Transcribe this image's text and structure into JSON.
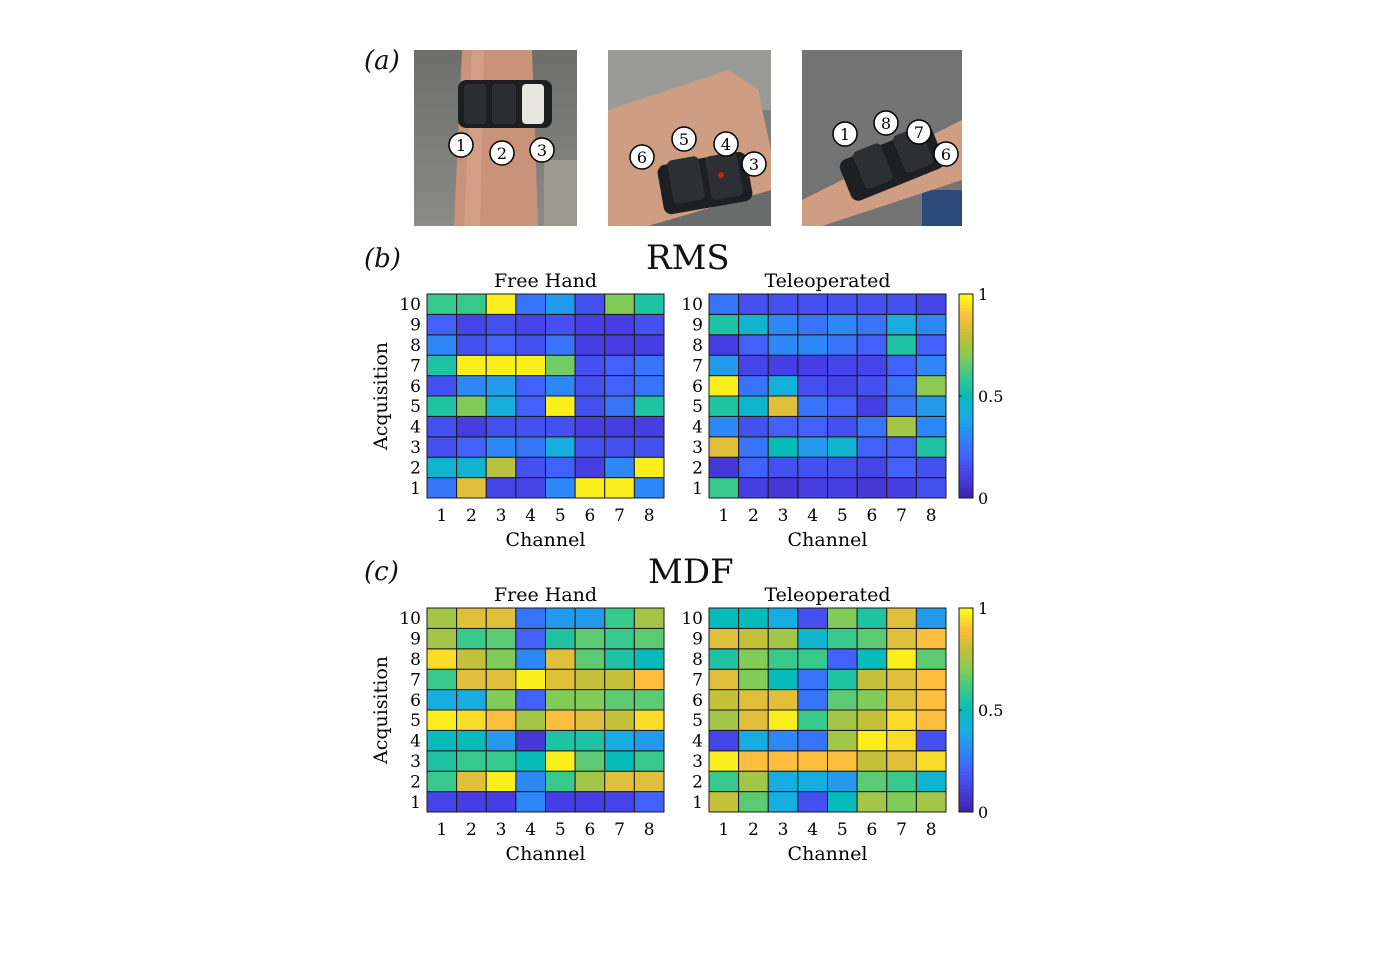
{
  "panels": {
    "a": "(a)",
    "b": "(b)",
    "c": "(c)"
  },
  "photos": [
    {
      "name": "photo-front-view",
      "markers": [
        "1",
        "2",
        "3"
      ]
    },
    {
      "name": "photo-side-view",
      "markers": [
        "6",
        "5",
        "4",
        "3"
      ]
    },
    {
      "name": "photo-back-view",
      "markers": [
        "1",
        "8",
        "7",
        "6"
      ]
    }
  ],
  "colorbar_ticks": [
    "0",
    "0.5",
    "1"
  ],
  "chart_data": [
    {
      "type": "heatmap",
      "group": "RMS",
      "title": "Free Hand",
      "xlabel": "Channel",
      "ylabel": "Acquisition",
      "x": [
        "1",
        "2",
        "3",
        "4",
        "5",
        "6",
        "7",
        "8"
      ],
      "y": [
        "1",
        "2",
        "3",
        "4",
        "5",
        "6",
        "7",
        "8",
        "9",
        "10"
      ],
      "clim": [
        0,
        1
      ],
      "values": [
        [
          0.25,
          0.85,
          0.12,
          0.12,
          0.3,
          0.98,
          0.98,
          0.3
        ],
        [
          0.45,
          0.45,
          0.78,
          0.15,
          0.2,
          0.1,
          0.3,
          0.98
        ],
        [
          0.15,
          0.2,
          0.3,
          0.25,
          0.4,
          0.15,
          0.15,
          0.15
        ],
        [
          0.15,
          0.1,
          0.15,
          0.15,
          0.15,
          0.1,
          0.1,
          0.1
        ],
        [
          0.55,
          0.7,
          0.42,
          0.2,
          0.98,
          0.15,
          0.25,
          0.55
        ],
        [
          0.15,
          0.3,
          0.35,
          0.2,
          0.3,
          0.15,
          0.2,
          0.25
        ],
        [
          0.55,
          0.98,
          0.98,
          0.98,
          0.68,
          0.15,
          0.2,
          0.25
        ],
        [
          0.3,
          0.15,
          0.2,
          0.15,
          0.25,
          0.1,
          0.1,
          0.1
        ],
        [
          0.2,
          0.12,
          0.15,
          0.12,
          0.15,
          0.1,
          0.1,
          0.15
        ],
        [
          0.6,
          0.6,
          0.98,
          0.25,
          0.35,
          0.15,
          0.7,
          0.55
        ]
      ]
    },
    {
      "type": "heatmap",
      "group": "RMS",
      "title": "Teleoperated",
      "xlabel": "Channel",
      "ylabel": "",
      "x": [
        "1",
        "2",
        "3",
        "4",
        "5",
        "6",
        "7",
        "8"
      ],
      "y": [
        "1",
        "2",
        "3",
        "4",
        "5",
        "6",
        "7",
        "8",
        "9",
        "10"
      ],
      "clim": [
        0,
        1
      ],
      "values": [
        [
          0.6,
          0.1,
          0.08,
          0.1,
          0.1,
          0.08,
          0.1,
          0.15
        ],
        [
          0.08,
          0.2,
          0.15,
          0.15,
          0.15,
          0.12,
          0.2,
          0.15
        ],
        [
          0.85,
          0.25,
          0.5,
          0.35,
          0.45,
          0.2,
          0.2,
          0.55
        ],
        [
          0.3,
          0.15,
          0.2,
          0.2,
          0.15,
          0.25,
          0.75,
          0.3
        ],
        [
          0.55,
          0.45,
          0.85,
          0.25,
          0.2,
          0.1,
          0.25,
          0.35
        ],
        [
          0.98,
          0.25,
          0.42,
          0.15,
          0.12,
          0.15,
          0.25,
          0.72
        ],
        [
          0.35,
          0.12,
          0.1,
          0.1,
          0.12,
          0.12,
          0.2,
          0.3
        ],
        [
          0.1,
          0.2,
          0.3,
          0.3,
          0.25,
          0.2,
          0.55,
          0.2
        ],
        [
          0.55,
          0.45,
          0.3,
          0.25,
          0.3,
          0.25,
          0.4,
          0.3
        ],
        [
          0.25,
          0.15,
          0.15,
          0.15,
          0.15,
          0.15,
          0.15,
          0.12
        ]
      ]
    },
    {
      "type": "heatmap",
      "group": "MDF",
      "title": "Free Hand",
      "xlabel": "Channel",
      "ylabel": "Acquisition",
      "x": [
        "1",
        "2",
        "3",
        "4",
        "5",
        "6",
        "7",
        "8"
      ],
      "y": [
        "1",
        "2",
        "3",
        "4",
        "5",
        "6",
        "7",
        "8",
        "9",
        "10"
      ],
      "clim": [
        0,
        1
      ],
      "values": [
        [
          0.12,
          0.1,
          0.1,
          0.3,
          0.1,
          0.1,
          0.12,
          0.2
        ],
        [
          0.6,
          0.85,
          0.98,
          0.3,
          0.6,
          0.75,
          0.85,
          0.85
        ],
        [
          0.55,
          0.6,
          0.6,
          0.5,
          0.98,
          0.65,
          0.5,
          0.6
        ],
        [
          0.5,
          0.5,
          0.35,
          0.08,
          0.55,
          0.55,
          0.4,
          0.35
        ],
        [
          0.98,
          0.95,
          0.9,
          0.75,
          0.9,
          0.85,
          0.8,
          0.95
        ],
        [
          0.4,
          0.4,
          0.7,
          0.2,
          0.7,
          0.7,
          0.65,
          0.65
        ],
        [
          0.6,
          0.85,
          0.85,
          0.98,
          0.85,
          0.8,
          0.8,
          0.9
        ],
        [
          0.95,
          0.8,
          0.7,
          0.3,
          0.85,
          0.65,
          0.55,
          0.5
        ],
        [
          0.75,
          0.6,
          0.65,
          0.2,
          0.55,
          0.65,
          0.6,
          0.65
        ],
        [
          0.75,
          0.85,
          0.85,
          0.25,
          0.35,
          0.35,
          0.6,
          0.75
        ]
      ]
    },
    {
      "type": "heatmap",
      "group": "MDF",
      "title": "Teleoperated",
      "xlabel": "Channel",
      "ylabel": "",
      "x": [
        "1",
        "2",
        "3",
        "4",
        "5",
        "6",
        "7",
        "8"
      ],
      "y": [
        "1",
        "2",
        "3",
        "4",
        "5",
        "6",
        "7",
        "8",
        "9",
        "10"
      ],
      "clim": [
        0,
        1
      ],
      "values": [
        [
          0.8,
          0.65,
          0.4,
          0.15,
          0.5,
          0.75,
          0.7,
          0.75
        ],
        [
          0.6,
          0.75,
          0.4,
          0.4,
          0.35,
          0.65,
          0.6,
          0.45
        ],
        [
          0.98,
          0.9,
          0.9,
          0.9,
          0.9,
          0.8,
          0.85,
          0.95
        ],
        [
          0.12,
          0.4,
          0.3,
          0.25,
          0.75,
          0.98,
          0.95,
          0.15
        ],
        [
          0.75,
          0.85,
          0.98,
          0.6,
          0.75,
          0.8,
          0.95,
          0.9
        ],
        [
          0.8,
          0.85,
          0.85,
          0.25,
          0.65,
          0.7,
          0.85,
          0.9
        ],
        [
          0.85,
          0.7,
          0.5,
          0.25,
          0.55,
          0.8,
          0.85,
          0.9
        ],
        [
          0.55,
          0.7,
          0.6,
          0.6,
          0.2,
          0.5,
          0.98,
          0.65
        ],
        [
          0.85,
          0.8,
          0.75,
          0.45,
          0.6,
          0.65,
          0.85,
          0.9
        ],
        [
          0.5,
          0.5,
          0.4,
          0.15,
          0.7,
          0.55,
          0.85,
          0.35
        ]
      ]
    }
  ]
}
